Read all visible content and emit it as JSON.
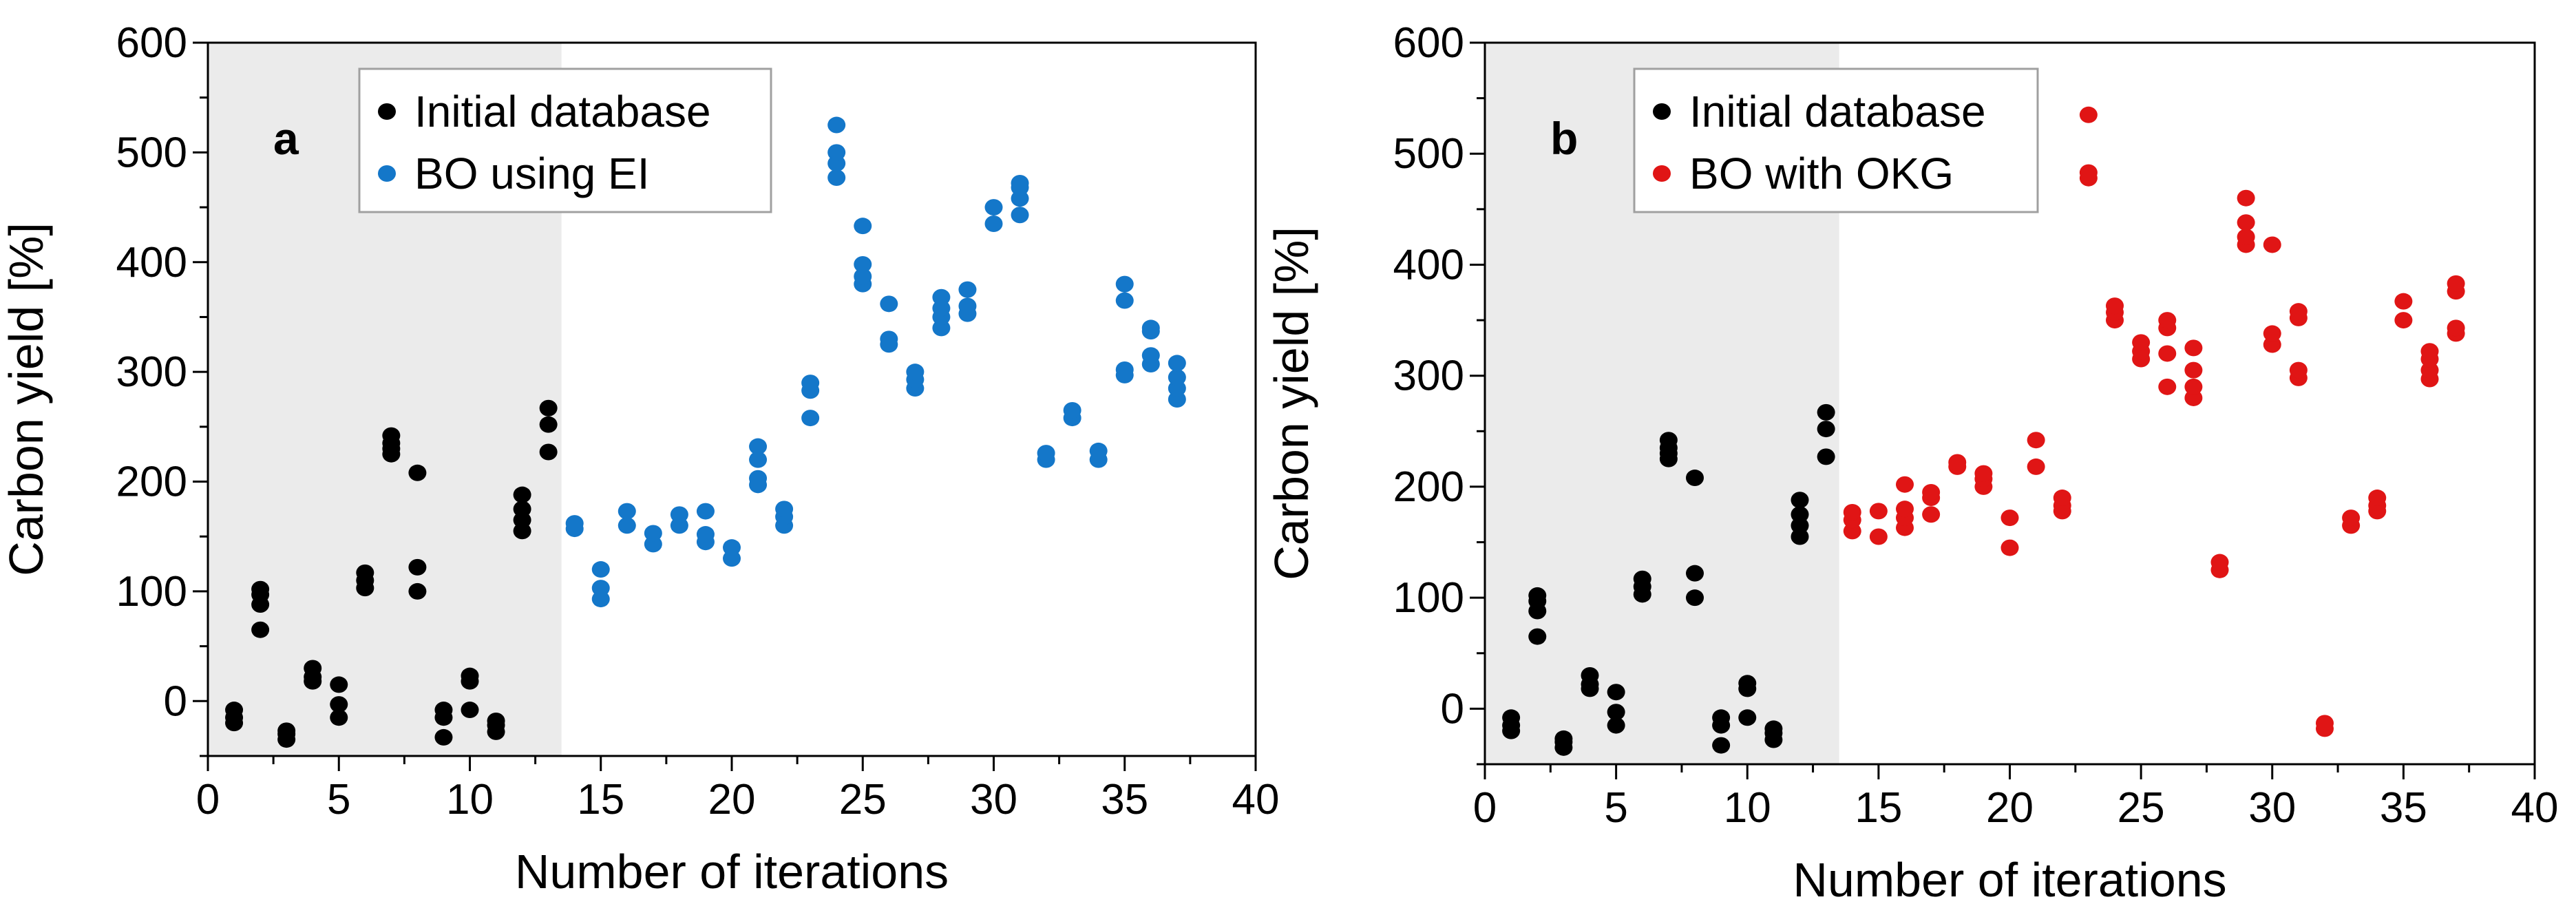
{
  "colors": {
    "initial": "#000000",
    "ei": "#1477c9",
    "okg": "#e01515",
    "shade": "#ebebeb",
    "legend_border": "#a0a0a0"
  },
  "chart_data": [
    {
      "type": "scatter",
      "panel_label": "a",
      "xlabel": "Number of iterations",
      "ylabel": "Carbon yield [%]",
      "xlim": [
        0,
        40
      ],
      "ylim": [
        -50,
        600
      ],
      "xticks": [
        0,
        5,
        10,
        15,
        20,
        25,
        30,
        35,
        40
      ],
      "yticks": [
        0,
        100,
        200,
        300,
        400,
        500,
        600
      ],
      "shaded_region": [
        0,
        13.5
      ],
      "legend": [
        "Initial database",
        "BO using EI"
      ],
      "series": [
        {
          "name": "Initial database",
          "color": "#000000",
          "points": [
            [
              1,
              -20
            ],
            [
              1,
              -15
            ],
            [
              1,
              -8
            ],
            [
              2,
              65
            ],
            [
              2,
              88
            ],
            [
              2,
              97
            ],
            [
              2,
              102
            ],
            [
              3,
              -35
            ],
            [
              3,
              -30
            ],
            [
              3,
              -27
            ],
            [
              4,
              18
            ],
            [
              4,
              22
            ],
            [
              4,
              30
            ],
            [
              5,
              -15
            ],
            [
              5,
              -3
            ],
            [
              5,
              15
            ],
            [
              6,
              103
            ],
            [
              6,
              110
            ],
            [
              6,
              117
            ],
            [
              7,
              225
            ],
            [
              7,
              230
            ],
            [
              7,
              235
            ],
            [
              7,
              242
            ],
            [
              8,
              100
            ],
            [
              8,
              122
            ],
            [
              8,
              208
            ],
            [
              9,
              -33
            ],
            [
              9,
              -15
            ],
            [
              9,
              -8
            ],
            [
              10,
              -8
            ],
            [
              10,
              18
            ],
            [
              10,
              23
            ],
            [
              11,
              -28
            ],
            [
              11,
              -22
            ],
            [
              11,
              -18
            ],
            [
              12,
              155
            ],
            [
              12,
              165
            ],
            [
              12,
              175
            ],
            [
              12,
              188
            ],
            [
              13,
              227
            ],
            [
              13,
              252
            ],
            [
              13,
              267
            ]
          ]
        },
        {
          "name": "BO using EI",
          "color": "#1477c9",
          "points": [
            [
              14,
              157
            ],
            [
              14,
              162
            ],
            [
              15,
              93
            ],
            [
              15,
              103
            ],
            [
              15,
              120
            ],
            [
              16,
              160
            ],
            [
              16,
              173
            ],
            [
              17,
              143
            ],
            [
              17,
              153
            ],
            [
              18,
              160
            ],
            [
              18,
              170
            ],
            [
              19,
              145
            ],
            [
              19,
              152
            ],
            [
              19,
              173
            ],
            [
              20,
              130
            ],
            [
              20,
              140
            ],
            [
              21,
              197
            ],
            [
              21,
              203
            ],
            [
              21,
              220
            ],
            [
              21,
              232
            ],
            [
              22,
              160
            ],
            [
              22,
              168
            ],
            [
              22,
              175
            ],
            [
              23,
              258
            ],
            [
              23,
              283
            ],
            [
              23,
              290
            ],
            [
              24,
              477
            ],
            [
              24,
              490
            ],
            [
              24,
              500
            ],
            [
              24,
              525
            ],
            [
              25,
              380
            ],
            [
              25,
              387
            ],
            [
              25,
              398
            ],
            [
              25,
              433
            ],
            [
              26,
              325
            ],
            [
              26,
              330
            ],
            [
              26,
              362
            ],
            [
              27,
              285
            ],
            [
              27,
              293
            ],
            [
              27,
              300
            ],
            [
              28,
              340
            ],
            [
              28,
              350
            ],
            [
              28,
              358
            ],
            [
              28,
              368
            ],
            [
              29,
              353
            ],
            [
              29,
              360
            ],
            [
              29,
              375
            ],
            [
              30,
              435
            ],
            [
              30,
              450
            ],
            [
              31,
              443
            ],
            [
              31,
              458
            ],
            [
              31,
              468
            ],
            [
              31,
              472
            ],
            [
              32,
              220
            ],
            [
              32,
              226
            ],
            [
              33,
              258
            ],
            [
              33,
              265
            ],
            [
              34,
              220
            ],
            [
              34,
              228
            ],
            [
              35,
              297
            ],
            [
              35,
              302
            ],
            [
              35,
              365
            ],
            [
              35,
              380
            ],
            [
              36,
              307
            ],
            [
              36,
              315
            ],
            [
              36,
              337
            ],
            [
              36,
              340
            ],
            [
              37,
              275
            ],
            [
              37,
              285
            ],
            [
              37,
              295
            ],
            [
              37,
              308
            ]
          ]
        }
      ]
    },
    {
      "type": "scatter",
      "panel_label": "b",
      "xlabel": "Number of iterations",
      "ylabel": "Carbon yield [%]",
      "xlim": [
        0,
        40
      ],
      "ylim": [
        -50,
        600
      ],
      "xticks": [
        0,
        5,
        10,
        15,
        20,
        25,
        30,
        35,
        40
      ],
      "yticks": [
        0,
        100,
        200,
        300,
        400,
        500,
        600
      ],
      "shaded_region": [
        0,
        13.5
      ],
      "legend": [
        "Initial database",
        "BO with OKG"
      ],
      "series": [
        {
          "name": "Initial database",
          "color": "#000000",
          "points": [
            [
              1,
              -20
            ],
            [
              1,
              -15
            ],
            [
              1,
              -8
            ],
            [
              2,
              65
            ],
            [
              2,
              88
            ],
            [
              2,
              97
            ],
            [
              2,
              102
            ],
            [
              3,
              -35
            ],
            [
              3,
              -30
            ],
            [
              3,
              -27
            ],
            [
              4,
              18
            ],
            [
              4,
              22
            ],
            [
              4,
              30
            ],
            [
              5,
              -15
            ],
            [
              5,
              -3
            ],
            [
              5,
              15
            ],
            [
              6,
              103
            ],
            [
              6,
              110
            ],
            [
              6,
              117
            ],
            [
              7,
              225
            ],
            [
              7,
              230
            ],
            [
              7,
              235
            ],
            [
              7,
              242
            ],
            [
              8,
              100
            ],
            [
              8,
              122
            ],
            [
              8,
              208
            ],
            [
              9,
              -33
            ],
            [
              9,
              -15
            ],
            [
              9,
              -8
            ],
            [
              10,
              -8
            ],
            [
              10,
              18
            ],
            [
              10,
              23
            ],
            [
              11,
              -28
            ],
            [
              11,
              -22
            ],
            [
              11,
              -18
            ],
            [
              12,
              155
            ],
            [
              12,
              165
            ],
            [
              12,
              175
            ],
            [
              12,
              188
            ],
            [
              13,
              227
            ],
            [
              13,
              252
            ],
            [
              13,
              267
            ]
          ]
        },
        {
          "name": "BO with OKG",
          "color": "#e01515",
          "points": [
            [
              14,
              160
            ],
            [
              14,
              170
            ],
            [
              14,
              177
            ],
            [
              15,
              155
            ],
            [
              15,
              178
            ],
            [
              16,
              163
            ],
            [
              16,
              172
            ],
            [
              16,
              180
            ],
            [
              16,
              202
            ],
            [
              17,
              175
            ],
            [
              17,
              190
            ],
            [
              17,
              195
            ],
            [
              18,
              218
            ],
            [
              18,
              222
            ],
            [
              19,
              200
            ],
            [
              19,
              207
            ],
            [
              19,
              212
            ],
            [
              20,
              145
            ],
            [
              20,
              172
            ],
            [
              21,
              218
            ],
            [
              21,
              242
            ],
            [
              22,
              178
            ],
            [
              22,
              183
            ],
            [
              22,
              190
            ],
            [
              23,
              478
            ],
            [
              23,
              483
            ],
            [
              23,
              535
            ],
            [
              24,
              350
            ],
            [
              24,
              357
            ],
            [
              24,
              363
            ],
            [
              25,
              315
            ],
            [
              25,
              322
            ],
            [
              25,
              330
            ],
            [
              26,
              290
            ],
            [
              26,
              320
            ],
            [
              26,
              343
            ],
            [
              26,
              350
            ],
            [
              27,
              280
            ],
            [
              27,
              290
            ],
            [
              27,
              305
            ],
            [
              27,
              325
            ],
            [
              28,
              125
            ],
            [
              28,
              132
            ],
            [
              29,
              418
            ],
            [
              29,
              425
            ],
            [
              29,
              438
            ],
            [
              29,
              460
            ],
            [
              30,
              328
            ],
            [
              30,
              338
            ],
            [
              30,
              418
            ],
            [
              31,
              298
            ],
            [
              31,
              305
            ],
            [
              31,
              352
            ],
            [
              31,
              358
            ],
            [
              32,
              -18
            ],
            [
              32,
              -13
            ],
            [
              33,
              165
            ],
            [
              33,
              172
            ],
            [
              34,
              178
            ],
            [
              34,
              183
            ],
            [
              34,
              190
            ],
            [
              35,
              350
            ],
            [
              35,
              367
            ],
            [
              36,
              297
            ],
            [
              36,
              305
            ],
            [
              36,
              315
            ],
            [
              36,
              322
            ],
            [
              37,
              338
            ],
            [
              37,
              343
            ],
            [
              37,
              376
            ],
            [
              37,
              383
            ]
          ]
        }
      ]
    }
  ]
}
